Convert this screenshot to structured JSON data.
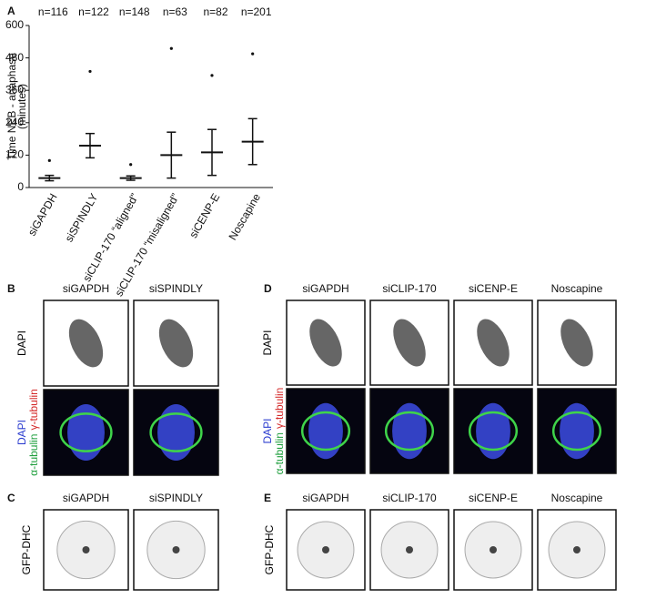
{
  "chart_data": {
    "type": "dot",
    "ylabel": [
      "Time NEB - anaphase",
      "(minutes)"
    ],
    "categories": [
      "siGAPDH",
      "siSPINDLY",
      "siCLIP-170 “aligned”",
      "siCLIP-170 “misaligned”",
      "siCENP-E",
      "Noscapine"
    ],
    "n_labels": [
      "n=116",
      "n=122",
      "n=148",
      "n=63",
      "n=82",
      "n=201"
    ],
    "mean": [
      35,
      155,
      35,
      120,
      130,
      170
    ],
    "sd": [
      10,
      45,
      8,
      85,
      85,
      85
    ],
    "max": [
      100,
      430,
      85,
      515,
      415,
      495
    ],
    "color": "#111111",
    "ylim": [
      0,
      600
    ],
    "yticks": [
      0,
      120,
      240,
      360,
      480,
      600
    ]
  },
  "panel_letters": [
    "A",
    "B",
    "C",
    "D",
    "E"
  ],
  "panel_b": {
    "columns": [
      "siGAPDH",
      "siSPINDLY"
    ],
    "rows": [
      [
        {
          "text": "DAPI",
          "color": "#000000"
        }
      ],
      [
        {
          "text": "DAPI",
          "color": "#2b3ccf"
        },
        {
          "text": "α-tubulin",
          "color": "#1e9e3c"
        },
        {
          "text": "γ-tubulin",
          "color": "#d42a2a"
        }
      ]
    ]
  },
  "panel_c": {
    "columns": [
      "siGAPDH",
      "siSPINDLY"
    ],
    "rows": [
      [
        {
          "text": "GFP-DHC",
          "color": "#000000"
        }
      ]
    ]
  },
  "panel_d": {
    "columns": [
      "siGAPDH",
      "siCLIP-170",
      "siCENP-E",
      "Noscapine"
    ],
    "rows": [
      [
        {
          "text": "DAPI",
          "color": "#000000"
        }
      ],
      [
        {
          "text": "DAPI",
          "color": "#2b3ccf"
        },
        {
          "text": "α-tubulin",
          "color": "#1e9e3c"
        },
        {
          "text": "γ-tubulin",
          "color": "#d42a2a"
        }
      ]
    ]
  },
  "panel_e": {
    "columns": [
      "siGAPDH",
      "siCLIP-170",
      "siCENP-E",
      "Noscapine"
    ],
    "rows": [
      [
        {
          "text": "GFP-DHC",
          "color": "#000000"
        }
      ]
    ]
  }
}
